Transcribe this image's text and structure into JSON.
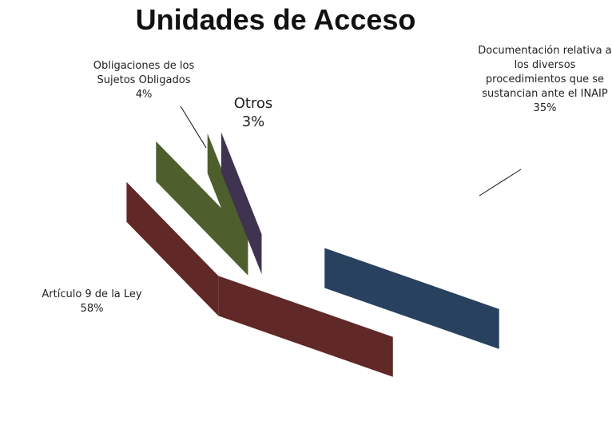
{
  "chart_data": {
    "type": "pie3d",
    "title": "Unidades de Acceso",
    "categories": [
      "Documentación relativa a los diversos procedimientos que se sustancian ante el INAIP",
      "Artículo 9 de la Ley",
      "Obligaciones de los Sujetos Obligados",
      "Otros"
    ],
    "values": [
      35,
      58,
      4,
      3
    ],
    "value_labels": [
      "35%",
      "58%",
      "4%",
      "3%"
    ],
    "colors": [
      "#4f81bd",
      "#c0504d",
      "#9bbb59",
      "#8064a2"
    ]
  }
}
